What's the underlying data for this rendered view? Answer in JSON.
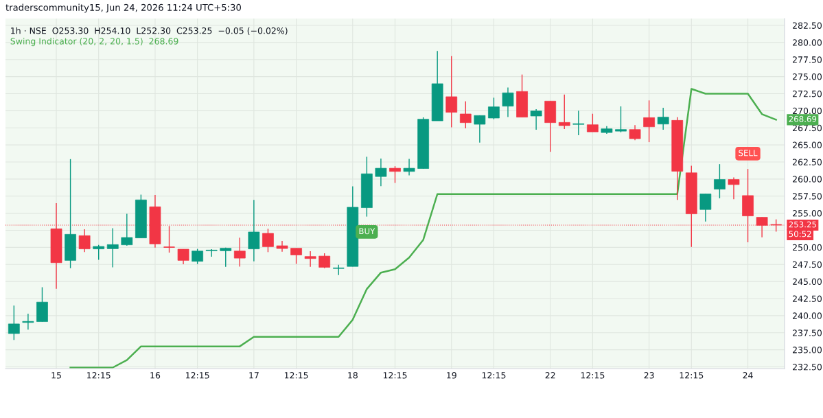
{
  "chart_data": {
    "type": "candlestick",
    "title": "1h · NSE  O253.30  H254.10  L252.30  C253.25  −0.05 (−0.02%)",
    "categories": [
      null,
      null,
      null,
      "15",
      null,
      null,
      "12:15",
      null,
      null,
      null,
      "16",
      null,
      null,
      "12:15",
      null,
      null,
      null,
      "17",
      null,
      null,
      "12:15",
      null,
      null,
      null,
      "18",
      null,
      null,
      "12:15",
      null,
      null,
      null,
      "19",
      null,
      null,
      "12:15",
      null,
      null,
      null,
      "22",
      null,
      null,
      "12:15",
      null,
      null,
      null,
      "23",
      null,
      null,
      "12:15",
      null,
      null,
      null,
      "24",
      null,
      null
    ],
    "ohlc": [
      [
        237.38,
        241.48,
        236.44,
        238.79
      ],
      [
        239.0,
        240.3,
        237.95,
        239.16
      ],
      [
        239.13,
        244.16,
        239.13,
        241.98
      ],
      [
        252.72,
        256.48,
        243.93,
        247.75
      ],
      [
        248.09,
        262.92,
        246.95,
        251.91
      ],
      [
        251.71,
        252.65,
        249.3,
        249.77
      ],
      [
        249.77,
        250.37,
        248.19,
        250.13
      ],
      [
        249.8,
        252.79,
        247.08,
        250.4
      ],
      [
        250.37,
        254.9,
        250.23,
        251.44
      ],
      [
        251.38,
        257.72,
        251.38,
        256.95
      ],
      [
        255.94,
        257.68,
        249.97,
        250.5
      ],
      [
        250.03,
        253.12,
        249.23,
        250.0
      ],
      [
        249.73,
        249.73,
        247.52,
        248.09
      ],
      [
        247.95,
        249.77,
        247.55,
        249.46
      ],
      [
        249.5,
        249.73,
        248.62,
        249.6
      ],
      [
        249.5,
        249.97,
        247.15,
        249.87
      ],
      [
        249.46,
        251.41,
        247.18,
        248.42
      ],
      [
        249.77,
        256.95,
        247.95,
        252.25
      ],
      [
        252.05,
        252.72,
        249.3,
        250.1
      ],
      [
        250.23,
        250.94,
        249.36,
        249.83
      ],
      [
        249.87,
        249.87,
        247.58,
        248.89
      ],
      [
        248.66,
        249.43,
        247.15,
        248.36
      ],
      [
        248.72,
        249.13,
        246.95,
        247.08
      ],
      [
        246.95,
        247.45,
        245.94,
        247.0
      ],
      [
        247.21,
        258.93,
        247.21,
        255.87
      ],
      [
        255.81,
        263.26,
        254.5,
        260.77
      ],
      [
        260.37,
        262.99,
        258.96,
        261.58
      ],
      [
        261.58,
        261.88,
        259.43,
        261.11
      ],
      [
        261.11,
        262.95,
        260.54,
        261.58
      ],
      [
        261.54,
        269.03,
        261.54,
        268.76
      ],
      [
        268.52,
        278.76,
        268.52,
        273.96
      ],
      [
        272.05,
        277.99,
        267.58,
        269.77
      ],
      [
        269.53,
        271.38,
        267.42,
        268.26
      ],
      [
        268.02,
        269.3,
        265.34,
        269.3
      ],
      [
        268.93,
        271.91,
        268.76,
        270.57
      ],
      [
        270.67,
        273.39,
        269.09,
        272.62
      ],
      [
        272.82,
        275.3,
        269.06,
        269.06
      ],
      [
        269.23,
        270.23,
        267.21,
        269.97
      ],
      [
        271.41,
        271.41,
        263.99,
        268.26
      ],
      [
        268.29,
        272.38,
        267.32,
        267.82
      ],
      [
        268.0,
        270.0,
        266.41,
        268.1
      ],
      [
        267.95,
        269.56,
        266.91,
        266.91
      ],
      [
        266.81,
        267.75,
        266.61,
        267.35
      ],
      [
        267.01,
        270.64,
        266.85,
        267.25
      ],
      [
        267.25,
        267.89,
        265.7,
        265.91
      ],
      [
        268.99,
        271.51,
        265.4,
        267.65
      ],
      [
        268.05,
        270.44,
        267.21,
        269.06
      ],
      [
        268.59,
        269.06,
        256.95,
        261.14
      ],
      [
        260.91,
        261.95,
        250.07,
        254.9
      ],
      [
        255.54,
        257.82,
        253.79,
        257.82
      ],
      [
        258.52,
        262.18,
        257.18,
        259.93
      ],
      [
        259.93,
        260.23,
        257.05,
        259.19
      ],
      [
        257.58,
        261.48,
        250.74,
        254.6
      ],
      [
        254.4,
        254.4,
        251.48,
        253.22
      ],
      [
        253.3,
        254.1,
        252.3,
        253.25
      ]
    ],
    "colors": [
      "#089981",
      "#089981",
      "#089981",
      "#f23645",
      "#089981",
      "#f23645",
      "#089981",
      "#089981",
      "#089981",
      "#089981",
      "#f23645",
      "#f23645",
      "#f23645",
      "#089981",
      "#089981",
      "#089981",
      "#f23645",
      "#089981",
      "#f23645",
      "#f23645",
      "#f23645",
      "#f23645",
      "#f23645",
      "#089981",
      "#089981",
      "#089981",
      "#089981",
      "#f23645",
      "#089981",
      "#089981",
      "#089981",
      "#f23645",
      "#f23645",
      "#089981",
      "#089981",
      "#089981",
      "#f23645",
      "#089981",
      "#f23645",
      "#f23645",
      "#089981",
      "#f23645",
      "#089981",
      "#089981",
      "#f23645",
      "#f23645",
      "#089981",
      "#f23645",
      "#f23645",
      "#089981",
      "#089981",
      "#f23645",
      "#f23645",
      "#f23645",
      "#f23645"
    ],
    "series": [
      {
        "type": "line",
        "name": "Swing Indicator (20, 2, 20, 1.5)",
        "color": "#4caf50",
        "values": [
          null,
          null,
          null,
          null,
          232.4,
          232.4,
          232.4,
          232.4,
          233.5,
          235.5,
          235.5,
          235.5,
          235.5,
          235.5,
          235.5,
          235.5,
          235.5,
          236.9,
          236.9,
          236.9,
          236.9,
          236.9,
          236.9,
          236.9,
          239.4,
          243.9,
          246.3,
          246.8,
          248.5,
          251.1,
          257.8,
          257.8,
          257.8,
          257.8,
          257.8,
          257.8,
          257.8,
          257.8,
          257.8,
          257.8,
          257.8,
          257.8,
          257.8,
          257.8,
          257.8,
          257.8,
          257.8,
          257.8,
          273.2,
          272.5,
          272.5,
          272.5,
          272.5,
          269.5,
          268.69
        ],
        "value_labels": [
          null,
          null,
          null,
          null,
          null,
          null,
          null,
          null,
          null,
          null,
          null,
          null,
          null,
          null,
          null,
          null,
          null,
          null,
          null,
          null,
          null,
          null,
          null,
          null,
          null,
          null,
          null,
          null,
          null,
          null,
          null,
          null,
          null,
          null,
          null,
          null,
          null,
          null,
          null,
          null,
          null,
          null,
          null,
          null,
          null,
          null,
          null,
          null,
          null,
          null,
          null,
          null,
          null,
          null,
          "268.69"
        ]
      }
    ],
    "ylim": [
      232.25,
      283.5
    ],
    "yticks": [
      {
        "value": 232.5,
        "label": "232.50"
      },
      {
        "value": 235,
        "label": "235.00"
      },
      {
        "value": 237.5,
        "label": "237.50"
      },
      {
        "value": 240,
        "label": "240.00"
      },
      {
        "value": 242.5,
        "label": "242.50"
      },
      {
        "value": 245,
        "label": "245.00"
      },
      {
        "value": 247.5,
        "label": "247.50"
      },
      {
        "value": 250,
        "label": "250.00"
      },
      {
        "value": 252.5,
        "label": null
      },
      {
        "value": 255,
        "label": "255.00"
      },
      {
        "value": 257.5,
        "label": "257.50"
      },
      {
        "value": 260,
        "label": "260.00"
      },
      {
        "value": 262.5,
        "label": "262.50"
      },
      {
        "value": 265,
        "label": "265.00"
      },
      {
        "value": 267.5,
        "label": "267.50"
      },
      {
        "value": 270,
        "label": "270.00"
      },
      {
        "value": 272.5,
        "label": "272.50"
      },
      {
        "value": 275,
        "label": "275.00"
      },
      {
        "value": 277.5,
        "label": "277.50"
      },
      {
        "value": 280,
        "label": "280.00"
      },
      {
        "value": 282.5,
        "label": "282.50"
      }
    ],
    "ref_lines": [
      {
        "axis": "y",
        "value": 253.25,
        "label": "253.25",
        "color": "#f23645",
        "line_style": "dotted"
      }
    ],
    "annotations": [
      "traderscommunity15, Jun 24, 2026 11:24 UTC+5:30",
      {
        "text": "BUY",
        "y": 254.5
      },
      {
        "text": "SELL",
        "y": 261.48
      },
      "50:52"
    ],
    "grid": true,
    "legend": "top left"
  }
}
